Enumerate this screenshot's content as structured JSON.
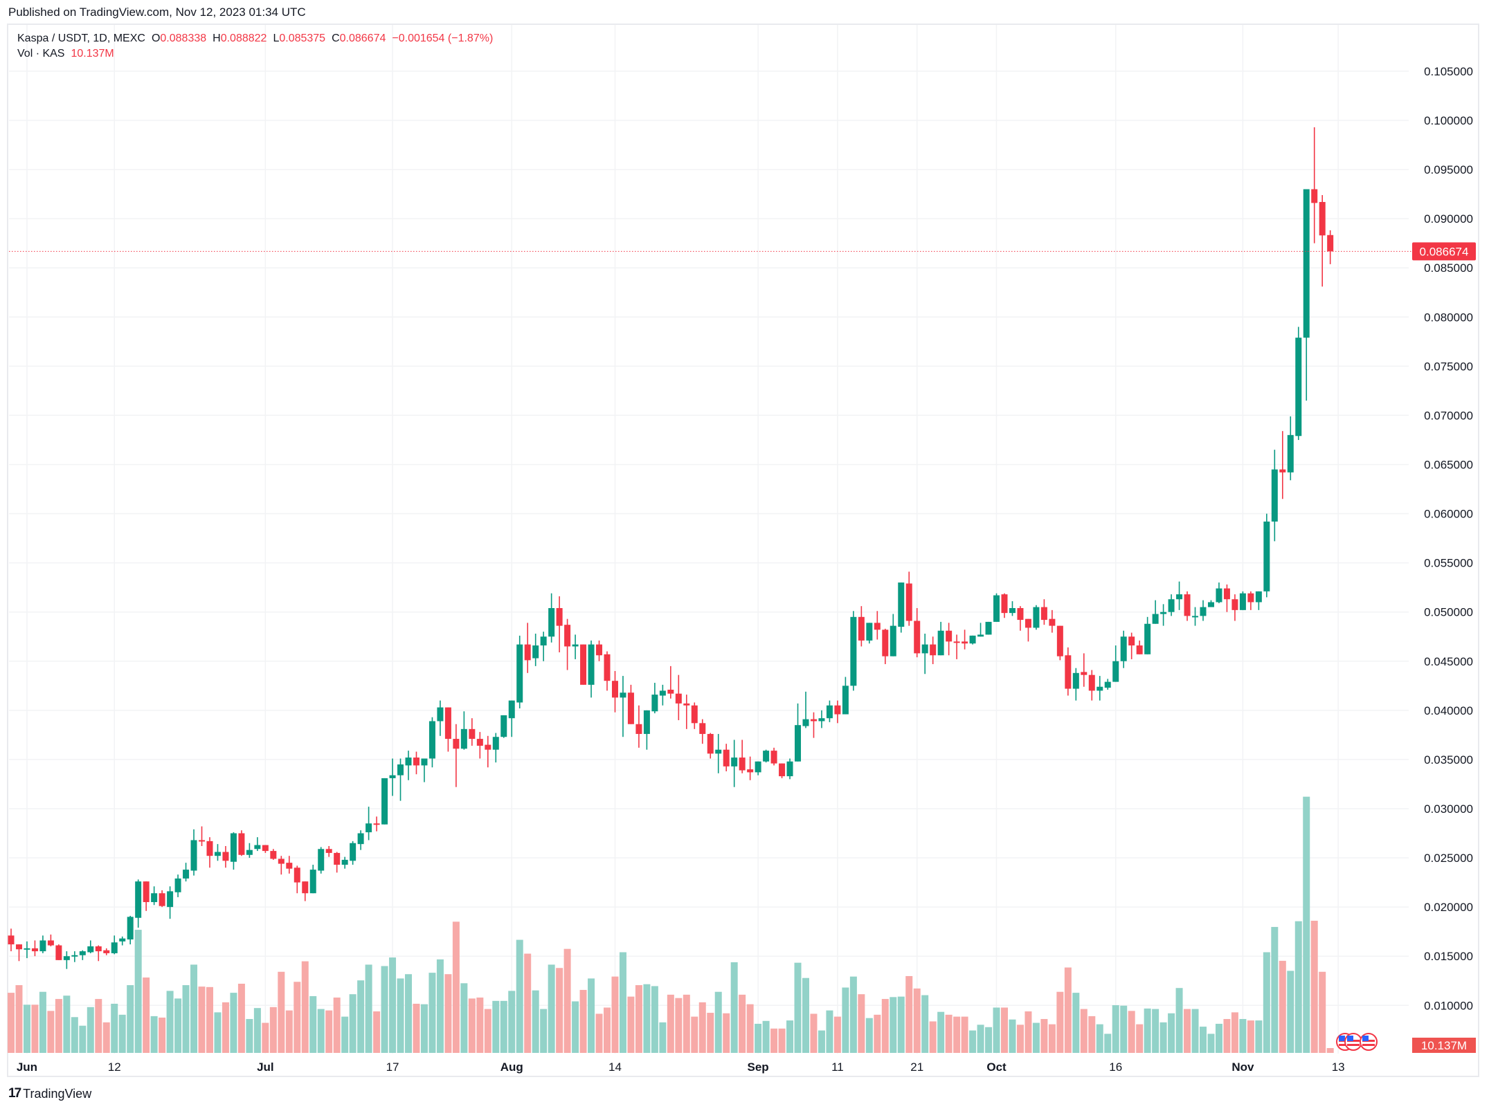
{
  "header": {
    "published": "Published on TradingView.com, Nov 12, 2023 01:34 UTC"
  },
  "legend": {
    "symbol": "Kaspa / USDT, 1D, MEXC",
    "o_label": "O",
    "o": "0.088338",
    "h_label": "H",
    "h": "0.088822",
    "l_label": "L",
    "l": "0.085375",
    "c_label": "C",
    "c": "0.086674",
    "change": "−0.001654 (−1.87%)",
    "vol_label": "Vol · KAS",
    "vol": "10.137M"
  },
  "colors": {
    "up": "#089981",
    "down": "#F23645",
    "vol_up": "#92d2c8",
    "vol_down": "#f7a9a7",
    "grid": "#f2f3f5",
    "badge": "#F23645",
    "vol_badge": "#EF5350"
  },
  "footer": {
    "logo": "TradingView",
    "logo_mark": "17"
  },
  "chart_data": {
    "type": "candlestick",
    "title": "Kaspa / USDT, 1D, MEXC",
    "xlabel": "",
    "ylabel": "",
    "ylim": [
      0.0051,
      0.1096
    ],
    "grid": true,
    "last_price": "0.086674",
    "last_volume": "10.137M",
    "y_ticks": [
      "0.010000",
      "0.015000",
      "0.020000",
      "0.025000",
      "0.030000",
      "0.035000",
      "0.040000",
      "0.045000",
      "0.050000",
      "0.055000",
      "0.060000",
      "0.065000",
      "0.070000",
      "0.075000",
      "0.080000",
      "0.085000",
      "0.090000",
      "0.095000",
      "0.100000",
      "0.105000"
    ],
    "x_labels": [
      {
        "label": "Jun",
        "index": 2
      },
      {
        "label": "12",
        "index": 13
      },
      {
        "label": "Jul",
        "index": 32
      },
      {
        "label": "17",
        "index": 48
      },
      {
        "label": "Aug",
        "index": 63
      },
      {
        "label": "14",
        "index": 76
      },
      {
        "label": "Sep",
        "index": 94
      },
      {
        "label": "11",
        "index": 104
      },
      {
        "label": "21",
        "index": 114
      },
      {
        "label": "Oct",
        "index": 124
      },
      {
        "label": "16",
        "index": 139
      },
      {
        "label": "Nov",
        "index": 155
      },
      {
        "label": "13",
        "index": 167
      }
    ],
    "fields": [
      "open",
      "high",
      "low",
      "close",
      "volume_millions"
    ],
    "candles": [
      [
        0.0171,
        0.0178,
        0.0155,
        0.0162,
        126
      ],
      [
        0.0162,
        0.0162,
        0.0145,
        0.0157,
        142
      ],
      [
        0.0158,
        0.0165,
        0.0148,
        0.0158,
        101
      ],
      [
        0.0158,
        0.0166,
        0.015,
        0.0155,
        101
      ],
      [
        0.0155,
        0.0171,
        0.0153,
        0.0166,
        128
      ],
      [
        0.0166,
        0.0172,
        0.016,
        0.0161,
        88
      ],
      [
        0.0161,
        0.0162,
        0.0146,
        0.0146,
        113
      ],
      [
        0.0146,
        0.0155,
        0.0137,
        0.015,
        120
      ],
      [
        0.015,
        0.0155,
        0.0144,
        0.0151,
        75
      ],
      [
        0.0151,
        0.0156,
        0.0146,
        0.0155,
        57
      ],
      [
        0.0154,
        0.0166,
        0.0153,
        0.016,
        96
      ],
      [
        0.016,
        0.0161,
        0.0145,
        0.0155,
        113
      ],
      [
        0.0156,
        0.0158,
        0.0151,
        0.0153,
        64
      ],
      [
        0.0153,
        0.0171,
        0.0152,
        0.0164,
        103
      ],
      [
        0.0165,
        0.017,
        0.0161,
        0.0168,
        80
      ],
      [
        0.0167,
        0.0191,
        0.0162,
        0.019,
        142
      ],
      [
        0.0189,
        0.0228,
        0.0179,
        0.0226,
        258
      ],
      [
        0.0226,
        0.0226,
        0.0196,
        0.0205,
        158
      ],
      [
        0.0205,
        0.0221,
        0.0202,
        0.0214,
        77
      ],
      [
        0.0214,
        0.0217,
        0.02,
        0.0201,
        74
      ],
      [
        0.02,
        0.0221,
        0.0188,
        0.0216,
        130
      ],
      [
        0.0215,
        0.0233,
        0.021,
        0.0229,
        114
      ],
      [
        0.0229,
        0.0245,
        0.0226,
        0.0238,
        142
      ],
      [
        0.0237,
        0.0279,
        0.0232,
        0.0268,
        185
      ],
      [
        0.0268,
        0.0282,
        0.0262,
        0.0267,
        139
      ],
      [
        0.0267,
        0.0271,
        0.024,
        0.0252,
        138
      ],
      [
        0.0252,
        0.0264,
        0.0247,
        0.0256,
        85
      ],
      [
        0.0256,
        0.0262,
        0.024,
        0.0247,
        106
      ],
      [
        0.0246,
        0.0276,
        0.0238,
        0.0275,
        126
      ],
      [
        0.0275,
        0.0278,
        0.0252,
        0.0253,
        145
      ],
      [
        0.0253,
        0.0265,
        0.025,
        0.0258,
        71
      ],
      [
        0.0259,
        0.0271,
        0.0257,
        0.0263,
        94
      ],
      [
        0.0263,
        0.0263,
        0.0255,
        0.0257,
        63
      ],
      [
        0.0257,
        0.0259,
        0.0248,
        0.0249,
        96
      ],
      [
        0.0249,
        0.0252,
        0.0233,
        0.0244,
        170
      ],
      [
        0.0245,
        0.0252,
        0.0234,
        0.0239,
        89
      ],
      [
        0.024,
        0.0242,
        0.0214,
        0.0225,
        149
      ],
      [
        0.0226,
        0.0226,
        0.0206,
        0.0214,
        192
      ],
      [
        0.0214,
        0.0243,
        0.0214,
        0.0238,
        119
      ],
      [
        0.0237,
        0.0261,
        0.0234,
        0.0259,
        92
      ],
      [
        0.0259,
        0.0262,
        0.0251,
        0.0255,
        89
      ],
      [
        0.0255,
        0.0256,
        0.0235,
        0.0243,
        116
      ],
      [
        0.0243,
        0.0251,
        0.0239,
        0.0248,
        76
      ],
      [
        0.0247,
        0.0267,
        0.0243,
        0.0265,
        123
      ],
      [
        0.0264,
        0.0278,
        0.0258,
        0.0275,
        152
      ],
      [
        0.0276,
        0.0302,
        0.0268,
        0.0285,
        185
      ],
      [
        0.0285,
        0.0292,
        0.0277,
        0.0284,
        87
      ],
      [
        0.0284,
        0.0331,
        0.0284,
        0.0331,
        182
      ],
      [
        0.0331,
        0.0351,
        0.0313,
        0.0334,
        200
      ],
      [
        0.0334,
        0.0351,
        0.0308,
        0.0345,
        156
      ],
      [
        0.0344,
        0.0359,
        0.0329,
        0.0352,
        165
      ],
      [
        0.0352,
        0.0358,
        0.0335,
        0.0344,
        103
      ],
      [
        0.0344,
        0.0351,
        0.0327,
        0.0351,
        102
      ],
      [
        0.0351,
        0.0393,
        0.0342,
        0.0389,
        168
      ],
      [
        0.0389,
        0.041,
        0.0374,
        0.0403,
        196
      ],
      [
        0.0403,
        0.0403,
        0.0358,
        0.0371,
        165
      ],
      [
        0.0371,
        0.0386,
        0.0322,
        0.0361,
        275
      ],
      [
        0.0361,
        0.0399,
        0.036,
        0.0381,
        146
      ],
      [
        0.0381,
        0.0392,
        0.0364,
        0.0371,
        114
      ],
      [
        0.0371,
        0.0378,
        0.0351,
        0.0364,
        116
      ],
      [
        0.0365,
        0.0374,
        0.0342,
        0.036,
        92
      ],
      [
        0.036,
        0.0377,
        0.0347,
        0.0373,
        109
      ],
      [
        0.0373,
        0.0395,
        0.0372,
        0.0395,
        109
      ],
      [
        0.0392,
        0.041,
        0.0373,
        0.041,
        130
      ],
      [
        0.0408,
        0.0476,
        0.0402,
        0.0467,
        237
      ],
      [
        0.0467,
        0.0489,
        0.0438,
        0.0451,
        208
      ],
      [
        0.0453,
        0.0478,
        0.0445,
        0.0466,
        131
      ],
      [
        0.0466,
        0.048,
        0.045,
        0.0475,
        92
      ],
      [
        0.0475,
        0.0519,
        0.0469,
        0.0504,
        185
      ],
      [
        0.0504,
        0.0516,
        0.0459,
        0.0486,
        178
      ],
      [
        0.0487,
        0.0493,
        0.0441,
        0.0465,
        218
      ],
      [
        0.0465,
        0.0477,
        0.0452,
        0.0467,
        108
      ],
      [
        0.0467,
        0.0467,
        0.0426,
        0.0426,
        132
      ],
      [
        0.0426,
        0.0471,
        0.0413,
        0.0467,
        156
      ],
      [
        0.0467,
        0.0471,
        0.045,
        0.0456,
        82
      ],
      [
        0.0457,
        0.046,
        0.042,
        0.043,
        95
      ],
      [
        0.043,
        0.044,
        0.0398,
        0.0413,
        160
      ],
      [
        0.0413,
        0.0435,
        0.0373,
        0.0418,
        211
      ],
      [
        0.0418,
        0.0426,
        0.0386,
        0.0386,
        118
      ],
      [
        0.0386,
        0.0405,
        0.0362,
        0.0376,
        142
      ],
      [
        0.0376,
        0.04,
        0.036,
        0.04,
        144
      ],
      [
        0.0399,
        0.0428,
        0.0397,
        0.0416,
        140
      ],
      [
        0.0415,
        0.0426,
        0.0405,
        0.042,
        64
      ],
      [
        0.0421,
        0.0445,
        0.0412,
        0.0417,
        122
      ],
      [
        0.0417,
        0.0436,
        0.039,
        0.0407,
        115
      ],
      [
        0.0407,
        0.0416,
        0.0381,
        0.0405,
        122
      ],
      [
        0.0405,
        0.0408,
        0.0381,
        0.0387,
        76
      ],
      [
        0.0387,
        0.0391,
        0.0366,
        0.0376,
        106
      ],
      [
        0.0376,
        0.0377,
        0.0351,
        0.0356,
        84
      ],
      [
        0.0356,
        0.0376,
        0.0336,
        0.036,
        128
      ],
      [
        0.036,
        0.0366,
        0.0338,
        0.0343,
        83
      ],
      [
        0.0343,
        0.037,
        0.0322,
        0.0352,
        190
      ],
      [
        0.0352,
        0.037,
        0.0336,
        0.0339,
        122
      ],
      [
        0.034,
        0.0353,
        0.0329,
        0.0337,
        102
      ],
      [
        0.0337,
        0.0348,
        0.0334,
        0.0348,
        61
      ],
      [
        0.0348,
        0.036,
        0.0347,
        0.0359,
        67
      ],
      [
        0.0359,
        0.0362,
        0.0344,
        0.0346,
        51
      ],
      [
        0.0346,
        0.0346,
        0.0331,
        0.0333,
        51
      ],
      [
        0.0333,
        0.0351,
        0.033,
        0.0348,
        68
      ],
      [
        0.0348,
        0.0407,
        0.0348,
        0.0385,
        189
      ],
      [
        0.0384,
        0.0419,
        0.0382,
        0.0391,
        157
      ],
      [
        0.0391,
        0.0398,
        0.0372,
        0.0389,
        82
      ],
      [
        0.0389,
        0.04,
        0.0382,
        0.0392,
        47
      ],
      [
        0.0392,
        0.041,
        0.0388,
        0.0405,
        89
      ],
      [
        0.0405,
        0.041,
        0.0387,
        0.0396,
        76
      ],
      [
        0.0396,
        0.0434,
        0.0396,
        0.0425,
        137
      ],
      [
        0.0425,
        0.0501,
        0.042,
        0.0495,
        160
      ],
      [
        0.0495,
        0.0506,
        0.0465,
        0.0471,
        123
      ],
      [
        0.0471,
        0.0489,
        0.0468,
        0.0489,
        73
      ],
      [
        0.0489,
        0.0501,
        0.0472,
        0.0482,
        80
      ],
      [
        0.0482,
        0.0483,
        0.0447,
        0.0455,
        113
      ],
      [
        0.0455,
        0.0498,
        0.0455,
        0.0486,
        117
      ],
      [
        0.0485,
        0.053,
        0.0479,
        0.053,
        118
      ],
      [
        0.0529,
        0.0541,
        0.0486,
        0.0491,
        161
      ],
      [
        0.0491,
        0.0504,
        0.0454,
        0.0458,
        135
      ],
      [
        0.0458,
        0.0478,
        0.0437,
        0.0467,
        121
      ],
      [
        0.0467,
        0.0475,
        0.0447,
        0.0456,
        66
      ],
      [
        0.0456,
        0.049,
        0.0456,
        0.0481,
        86
      ],
      [
        0.0481,
        0.0489,
        0.0456,
        0.047,
        80
      ],
      [
        0.047,
        0.0477,
        0.0452,
        0.0469,
        76
      ],
      [
        0.047,
        0.0482,
        0.0462,
        0.0468,
        76
      ],
      [
        0.0468,
        0.0476,
        0.0467,
        0.0476,
        47
      ],
      [
        0.0475,
        0.0489,
        0.0475,
        0.0477,
        59
      ],
      [
        0.0477,
        0.049,
        0.0477,
        0.049,
        54
      ],
      [
        0.049,
        0.0519,
        0.049,
        0.0517,
        95
      ],
      [
        0.0518,
        0.0519,
        0.0494,
        0.0499,
        95
      ],
      [
        0.0499,
        0.0511,
        0.0496,
        0.0504,
        70
      ],
      [
        0.0504,
        0.0506,
        0.0481,
        0.0492,
        59
      ],
      [
        0.0493,
        0.0493,
        0.047,
        0.0484,
        87
      ],
      [
        0.0484,
        0.0507,
        0.0482,
        0.0505,
        63
      ],
      [
        0.0505,
        0.0513,
        0.0487,
        0.0492,
        71
      ],
      [
        0.0493,
        0.0502,
        0.0479,
        0.0486,
        60
      ],
      [
        0.0486,
        0.0486,
        0.0451,
        0.0455,
        128
      ],
      [
        0.0456,
        0.0464,
        0.0415,
        0.0422,
        179
      ],
      [
        0.0422,
        0.0443,
        0.041,
        0.0438,
        126
      ],
      [
        0.0439,
        0.0458,
        0.0424,
        0.0436,
        92
      ],
      [
        0.0436,
        0.0441,
        0.041,
        0.042,
        77
      ],
      [
        0.042,
        0.0435,
        0.041,
        0.0424,
        60
      ],
      [
        0.0423,
        0.0432,
        0.0421,
        0.0429,
        40
      ],
      [
        0.0429,
        0.0466,
        0.0429,
        0.045,
        100
      ],
      [
        0.045,
        0.0481,
        0.0443,
        0.0475,
        99
      ],
      [
        0.0475,
        0.0479,
        0.0452,
        0.0466,
        88
      ],
      [
        0.0466,
        0.0471,
        0.0457,
        0.0457,
        60
      ],
      [
        0.0457,
        0.0495,
        0.0457,
        0.0488,
        93
      ],
      [
        0.0488,
        0.0512,
        0.0488,
        0.0498,
        92
      ],
      [
        0.0498,
        0.0508,
        0.0486,
        0.05,
        64
      ],
      [
        0.05,
        0.0518,
        0.0496,
        0.0513,
        83
      ],
      [
        0.0513,
        0.0531,
        0.0502,
        0.0518,
        136
      ],
      [
        0.0518,
        0.0521,
        0.0491,
        0.0496,
        92
      ],
      [
        0.0496,
        0.0505,
        0.0486,
        0.0496,
        92
      ],
      [
        0.0496,
        0.0512,
        0.0491,
        0.0505,
        55
      ],
      [
        0.0505,
        0.0512,
        0.0509,
        0.051,
        40
      ],
      [
        0.051,
        0.053,
        0.0509,
        0.0524,
        61
      ],
      [
        0.0524,
        0.0528,
        0.05,
        0.0513,
        71
      ],
      [
        0.0513,
        0.0518,
        0.0491,
        0.0502,
        85
      ],
      [
        0.0502,
        0.0521,
        0.0502,
        0.0519,
        71
      ],
      [
        0.0519,
        0.0521,
        0.0502,
        0.051,
        68
      ],
      [
        0.051,
        0.0521,
        0.0502,
        0.0521,
        68
      ],
      [
        0.0521,
        0.06,
        0.0515,
        0.0592,
        211
      ],
      [
        0.0592,
        0.0665,
        0.0572,
        0.0645,
        264
      ],
      [
        0.0645,
        0.0684,
        0.0615,
        0.0642,
        193
      ],
      [
        0.0642,
        0.0699,
        0.0634,
        0.068,
        172
      ],
      [
        0.0679,
        0.079,
        0.0675,
        0.0779,
        276
      ],
      [
        0.0779,
        0.093,
        0.0715,
        0.093,
        537
      ],
      [
        0.093,
        0.0993,
        0.0875,
        0.0916,
        277
      ],
      [
        0.0917,
        0.0924,
        0.0831,
        0.0883,
        170
      ],
      [
        0.088338,
        0.088822,
        0.085375,
        0.086674,
        10.137
      ]
    ]
  }
}
